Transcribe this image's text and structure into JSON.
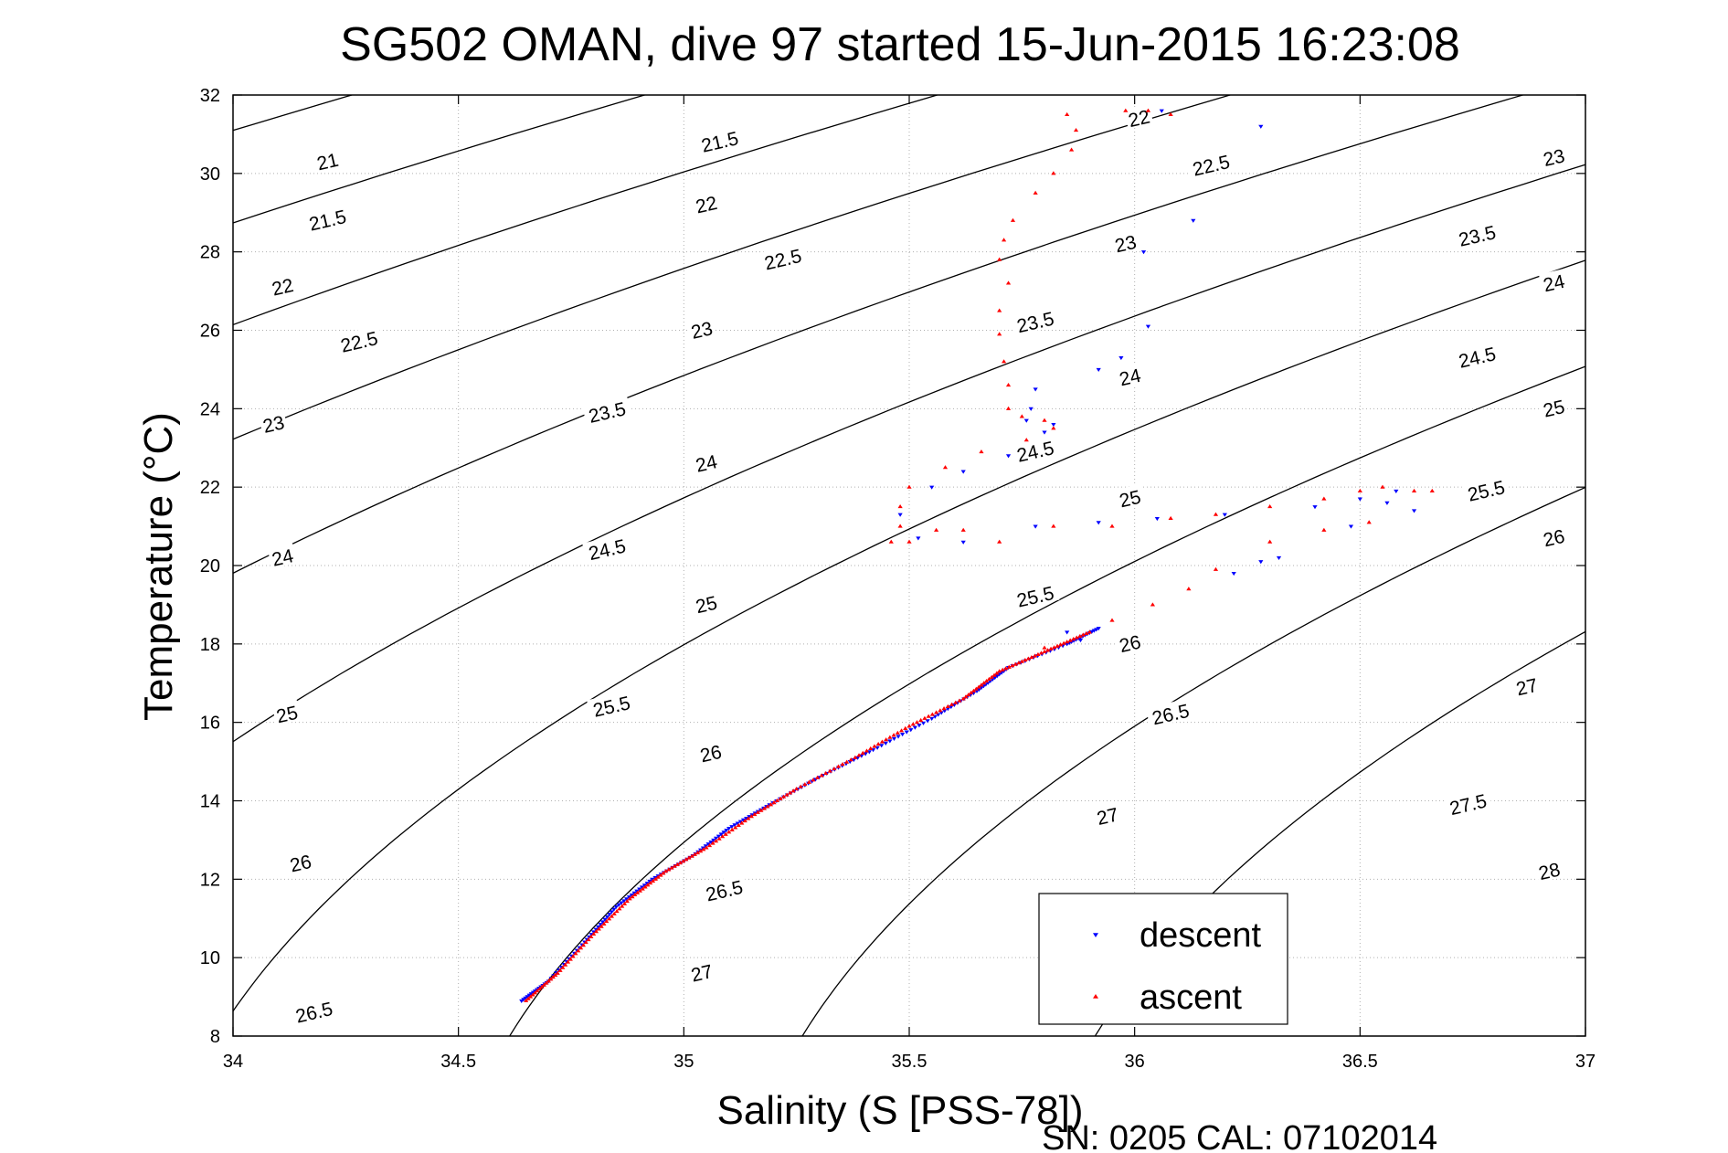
{
  "chart_data": {
    "type": "scatter",
    "title": "SG502 OMAN, dive 97 started 15-Jun-2015 16:23:08",
    "xlabel": "Salinity (S [PSS-78])",
    "ylabel": "Temperature (°C)",
    "footer": "SN: 0205  CAL: 07102014",
    "xlim": [
      34,
      37
    ],
    "ylim": [
      8,
      32
    ],
    "x_ticks": [
      34,
      34.5,
      35,
      35.5,
      36,
      36.5,
      37
    ],
    "x_tick_labels": [
      "34",
      "34.5",
      "35",
      "35.5",
      "36",
      "36.5",
      "37"
    ],
    "y_ticks": [
      8,
      10,
      12,
      14,
      16,
      18,
      20,
      22,
      24,
      26,
      28,
      30,
      32
    ],
    "y_tick_labels": [
      "8",
      "10",
      "12",
      "14",
      "16",
      "18",
      "20",
      "22",
      "24",
      "26",
      "28",
      "30",
      "32"
    ],
    "grid": true,
    "grid_style": "dotted",
    "legend_position": "bottom-right",
    "density_contours": {
      "levels": [
        21,
        21.5,
        22,
        22.5,
        23,
        23.5,
        24,
        24.5,
        25,
        25.5,
        26,
        26.5,
        27,
        27.5,
        28
      ],
      "color": "#000000",
      "labels": [
        {
          "text": "21",
          "s": 34.21,
          "t": 30.3
        },
        {
          "text": "21.5",
          "s": 34.21,
          "t": 28.8
        },
        {
          "text": "22",
          "s": 34.11,
          "t": 27.1
        },
        {
          "text": "22.5",
          "s": 34.28,
          "t": 25.7
        },
        {
          "text": "23",
          "s": 34.09,
          "t": 23.6
        },
        {
          "text": "23.5",
          "s": 34.83,
          "t": 23.9
        },
        {
          "text": "24",
          "s": 34.11,
          "t": 20.2
        },
        {
          "text": "24.5",
          "s": 34.83,
          "t": 20.4
        },
        {
          "text": "25",
          "s": 34.12,
          "t": 16.2
        },
        {
          "text": "25.5",
          "s": 34.84,
          "t": 16.4
        },
        {
          "text": "26",
          "s": 34.15,
          "t": 12.4
        },
        {
          "text": "26.5",
          "s": 34.18,
          "t": 8.6
        },
        {
          "text": "21.5",
          "s": 35.08,
          "t": 30.8
        },
        {
          "text": "22",
          "s": 35.05,
          "t": 29.2
        },
        {
          "text": "22.5",
          "s": 35.22,
          "t": 27.8
        },
        {
          "text": "23",
          "s": 35.04,
          "t": 26.0
        },
        {
          "text": "24",
          "s": 35.05,
          "t": 22.6
        },
        {
          "text": "25",
          "s": 35.05,
          "t": 19.0
        },
        {
          "text": "26",
          "s": 35.06,
          "t": 15.2
        },
        {
          "text": "26.5",
          "s": 35.09,
          "t": 11.7
        },
        {
          "text": "27",
          "s": 35.04,
          "t": 9.6
        },
        {
          "text": "22",
          "s": 36.01,
          "t": 31.4
        },
        {
          "text": "22.5",
          "s": 36.17,
          "t": 30.2
        },
        {
          "text": "23",
          "s": 35.98,
          "t": 28.2
        },
        {
          "text": "23.5",
          "s": 35.78,
          "t": 26.2
        },
        {
          "text": "24",
          "s": 35.99,
          "t": 24.8
        },
        {
          "text": "24.5",
          "s": 35.78,
          "t": 22.9
        },
        {
          "text": "25",
          "s": 35.99,
          "t": 21.7
        },
        {
          "text": "25.5",
          "s": 35.78,
          "t": 19.2
        },
        {
          "text": "26",
          "s": 35.99,
          "t": 18.0
        },
        {
          "text": "26.5",
          "s": 36.08,
          "t": 16.2
        },
        {
          "text": "27",
          "s": 35.94,
          "t": 13.6
        },
        {
          "text": "23",
          "s": 36.93,
          "t": 30.4
        },
        {
          "text": "23.5",
          "s": 36.76,
          "t": 28.4
        },
        {
          "text": "24",
          "s": 36.93,
          "t": 27.2
        },
        {
          "text": "24.5",
          "s": 36.76,
          "t": 25.3
        },
        {
          "text": "25",
          "s": 36.93,
          "t": 24.0
        },
        {
          "text": "25.5",
          "s": 36.78,
          "t": 21.9
        },
        {
          "text": "26",
          "s": 36.93,
          "t": 20.7
        },
        {
          "text": "27",
          "s": 36.87,
          "t": 16.9
        },
        {
          "text": "27.5",
          "s": 36.74,
          "t": 13.9
        },
        {
          "text": "28",
          "s": 36.92,
          "t": 12.2
        }
      ]
    },
    "series": [
      {
        "name": "descent",
        "color": "#0000ff",
        "marker": "triangle-down",
        "profile": [
          [
            34.64,
            8.9
          ],
          [
            34.7,
            9.4
          ],
          [
            34.78,
            10.4
          ],
          [
            34.85,
            11.3
          ],
          [
            34.93,
            12.0
          ],
          [
            35.02,
            12.6
          ],
          [
            35.1,
            13.3
          ],
          [
            35.19,
            13.9
          ],
          [
            35.3,
            14.6
          ],
          [
            35.42,
            15.3
          ],
          [
            35.55,
            16.1
          ],
          [
            35.65,
            16.8
          ],
          [
            35.72,
            17.4
          ],
          [
            35.85,
            18.0
          ],
          [
            35.92,
            18.4
          ]
        ],
        "extra_points": [
          [
            36.06,
            31.6
          ],
          [
            36.28,
            31.2
          ],
          [
            36.13,
            28.8
          ],
          [
            36.02,
            28.0
          ],
          [
            36.03,
            26.1
          ],
          [
            35.97,
            25.3
          ],
          [
            35.92,
            25.0
          ],
          [
            35.78,
            24.5
          ],
          [
            35.77,
            24.0
          ],
          [
            35.76,
            23.7
          ],
          [
            35.82,
            23.6
          ],
          [
            35.8,
            23.4
          ],
          [
            35.72,
            22.8
          ],
          [
            35.62,
            22.4
          ],
          [
            35.55,
            22.0
          ],
          [
            35.48,
            21.3
          ],
          [
            35.52,
            20.7
          ],
          [
            35.62,
            20.6
          ],
          [
            35.78,
            21.0
          ],
          [
            35.92,
            21.1
          ],
          [
            36.05,
            21.2
          ],
          [
            36.2,
            21.3
          ],
          [
            36.4,
            21.5
          ],
          [
            36.5,
            21.7
          ],
          [
            36.58,
            21.9
          ],
          [
            36.62,
            21.4
          ],
          [
            36.56,
            21.6
          ],
          [
            36.48,
            21.0
          ],
          [
            36.32,
            20.2
          ],
          [
            36.28,
            20.1
          ],
          [
            36.22,
            19.8
          ],
          [
            35.85,
            18.3
          ],
          [
            35.88,
            18.1
          ]
        ]
      },
      {
        "name": "ascent",
        "color": "#ff0000",
        "marker": "triangle-up",
        "profile": [
          [
            34.65,
            8.9
          ],
          [
            34.72,
            9.6
          ],
          [
            34.8,
            10.6
          ],
          [
            34.88,
            11.5
          ],
          [
            34.96,
            12.2
          ],
          [
            35.05,
            12.8
          ],
          [
            35.15,
            13.6
          ],
          [
            35.25,
            14.3
          ],
          [
            35.38,
            15.1
          ],
          [
            35.5,
            15.9
          ],
          [
            35.62,
            16.6
          ],
          [
            35.7,
            17.3
          ],
          [
            35.8,
            17.8
          ],
          [
            35.9,
            18.3
          ]
        ],
        "extra_points": [
          [
            35.85,
            31.5
          ],
          [
            35.98,
            31.6
          ],
          [
            36.03,
            31.6
          ],
          [
            36.08,
            31.5
          ],
          [
            35.87,
            31.1
          ],
          [
            35.86,
            30.6
          ],
          [
            35.82,
            30.0
          ],
          [
            35.78,
            29.5
          ],
          [
            35.73,
            28.8
          ],
          [
            35.71,
            28.3
          ],
          [
            35.7,
            27.8
          ],
          [
            35.72,
            27.2
          ],
          [
            35.7,
            26.5
          ],
          [
            35.7,
            25.9
          ],
          [
            35.71,
            25.2
          ],
          [
            35.72,
            24.6
          ],
          [
            35.72,
            24.0
          ],
          [
            35.75,
            23.8
          ],
          [
            35.8,
            23.7
          ],
          [
            35.82,
            23.5
          ],
          [
            35.76,
            23.2
          ],
          [
            35.66,
            22.9
          ],
          [
            35.58,
            22.5
          ],
          [
            35.5,
            22.0
          ],
          [
            35.48,
            21.5
          ],
          [
            35.48,
            21.0
          ],
          [
            35.46,
            20.6
          ],
          [
            35.5,
            20.6
          ],
          [
            35.56,
            20.9
          ],
          [
            35.62,
            20.9
          ],
          [
            35.7,
            20.6
          ],
          [
            35.82,
            21.0
          ],
          [
            35.95,
            21.0
          ],
          [
            36.08,
            21.2
          ],
          [
            36.18,
            21.3
          ],
          [
            36.3,
            21.5
          ],
          [
            36.42,
            21.7
          ],
          [
            36.5,
            21.9
          ],
          [
            36.55,
            22.0
          ],
          [
            36.62,
            21.9
          ],
          [
            36.66,
            21.9
          ],
          [
            36.52,
            21.1
          ],
          [
            36.42,
            20.9
          ],
          [
            36.3,
            20.6
          ],
          [
            36.18,
            19.9
          ],
          [
            36.12,
            19.4
          ],
          [
            36.04,
            19.0
          ],
          [
            35.95,
            18.6
          ],
          [
            35.8,
            17.9
          ]
        ]
      }
    ]
  }
}
